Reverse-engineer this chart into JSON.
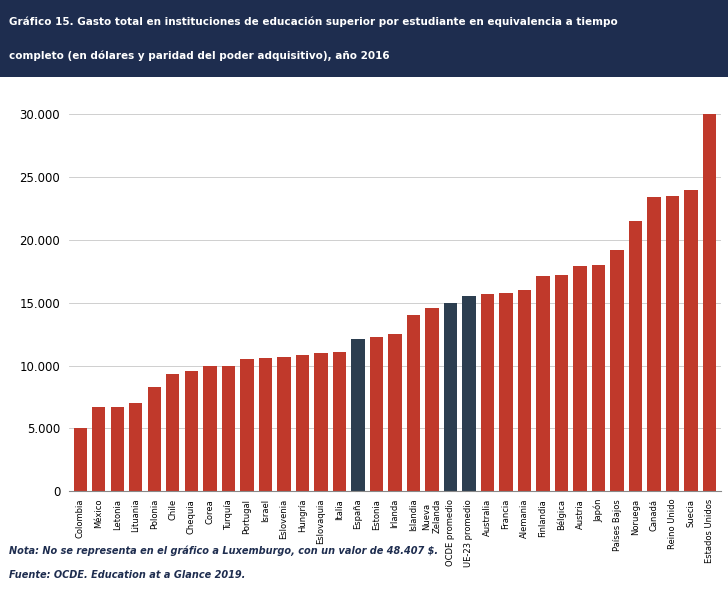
{
  "title_line1": "Gráfico 15. Gasto total en instituciones de educación superior por estudiante en equivalencia a tiempo",
  "title_line2": "completo (en dólares y paridad del poder adquisitivo), año 2016",
  "categories": [
    "Colombia",
    "México",
    "Letonia",
    "Lituania",
    "Polonia",
    "Chile",
    "Chequia",
    "Corea",
    "Turquía",
    "Portugal",
    "Israel",
    "Eslovenia",
    "Hungría",
    "Eslovaquia",
    "Italia",
    "España",
    "Estonia",
    "Irlanda",
    "Islandia",
    "Nueva\nZelanda",
    "OCDE promedio",
    "UE-23 promedio",
    "Australia",
    "Francia",
    "Alemania",
    "Finlandia",
    "Bélgica",
    "Austria",
    "Japón",
    "Países Bajos",
    "Noruega",
    "Canadá",
    "Reino Unido",
    "Suecia",
    "Estados Unidos"
  ],
  "values": [
    5000,
    6700,
    6700,
    7000,
    8300,
    9300,
    9600,
    10000,
    10000,
    10500,
    10600,
    10700,
    10800,
    11000,
    11100,
    12100,
    12300,
    12500,
    14000,
    14600,
    15000,
    15500,
    15700,
    15800,
    16000,
    17100,
    17200,
    17900,
    18000,
    19200,
    21500,
    23400,
    23500,
    24000,
    30000
  ],
  "colors": [
    "#c0392b",
    "#c0392b",
    "#c0392b",
    "#c0392b",
    "#c0392b",
    "#c0392b",
    "#c0392b",
    "#c0392b",
    "#c0392b",
    "#c0392b",
    "#c0392b",
    "#c0392b",
    "#c0392b",
    "#c0392b",
    "#c0392b",
    "#2c3e50",
    "#c0392b",
    "#c0392b",
    "#c0392b",
    "#c0392b",
    "#2c3e50",
    "#2c3e50",
    "#c0392b",
    "#c0392b",
    "#c0392b",
    "#c0392b",
    "#c0392b",
    "#c0392b",
    "#c0392b",
    "#c0392b",
    "#c0392b",
    "#c0392b",
    "#c0392b",
    "#c0392b",
    "#c0392b"
  ],
  "title_bg_color": "#1e2d4f",
  "title_text_color": "#ffffff",
  "note_line1": "Nota: No se representa en el gráfico a Luxemburgo, con un valor de 48.407 $.",
  "note_line2": "Fuente: OCDE. Education at a Glance 2019.",
  "ylim": [
    0,
    32000
  ],
  "yticks": [
    0,
    5000,
    10000,
    15000,
    20000,
    25000,
    30000
  ],
  "bg_color": "#ffffff",
  "grid_color": "#c8c8c8"
}
